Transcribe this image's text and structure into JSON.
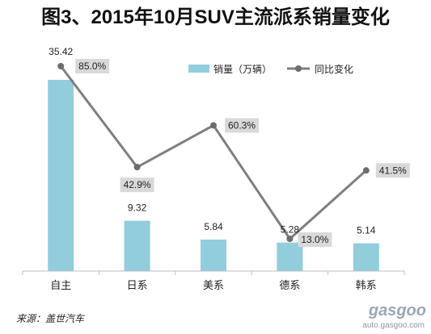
{
  "title": "图3、2015年10月SUV主流派系销量变化",
  "source": "来源：盖世汽车",
  "watermark": {
    "logo": "gasgoo",
    "subtitle": "auto.gasgoo.com"
  },
  "chart_data": {
    "type": "bar",
    "categories": [
      "自主",
      "日系",
      "美系",
      "德系",
      "韩系"
    ],
    "series": [
      {
        "name": "销量（万辆）",
        "type": "bar",
        "color": "#92CDDC",
        "values": [
          35.42,
          9.32,
          5.84,
          5.28,
          5.14
        ],
        "labels": [
          "35.42",
          "9.32",
          "5.84",
          "5.28",
          "5.14"
        ]
      },
      {
        "name": "同比变化",
        "type": "line",
        "color": "#7F7F7F",
        "values": [
          85.0,
          42.9,
          60.3,
          13.0,
          41.5
        ],
        "labels": [
          "85.0%",
          "42.9%",
          "60.3%",
          "13.0%",
          "41.5%"
        ]
      }
    ],
    "legend": "top-right",
    "grid": false
  }
}
